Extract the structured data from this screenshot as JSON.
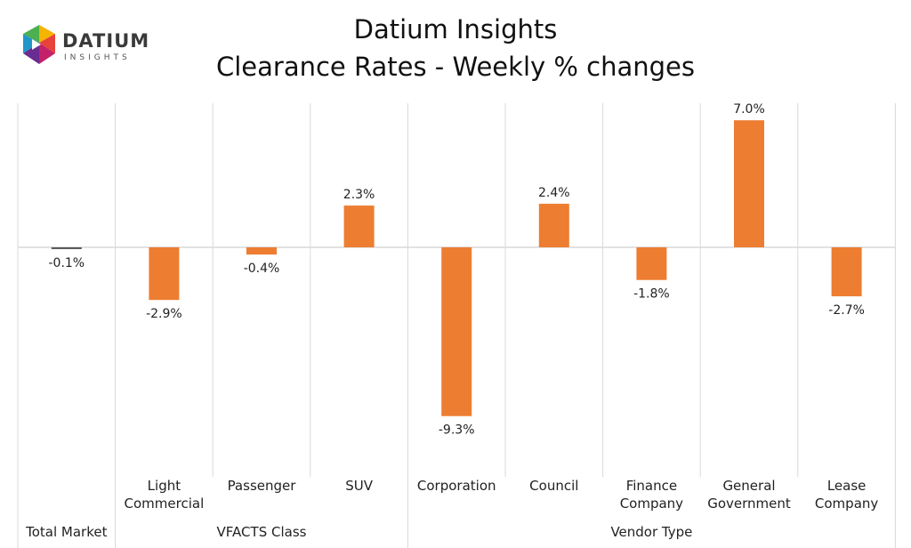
{
  "logo": {
    "word": "DATIUM",
    "sub": "INSIGHTS"
  },
  "title": "Datium Insights",
  "subtitle": "Clearance Rates - Weekly % changes",
  "colors": {
    "bar": "#ed7d31",
    "bar_total": "#5a5a5a",
    "axis": "#d9d9d9"
  },
  "chart_data": {
    "type": "bar",
    "title": "Datium Insights",
    "subtitle": "Clearance Rates - Weekly % changes",
    "categories": [
      [
        "Total Market"
      ],
      [
        "Light",
        "Commercial"
      ],
      [
        "Passenger"
      ],
      [
        "SUV"
      ],
      [
        "Corporation"
      ],
      [
        "Council"
      ],
      [
        "Finance",
        "Company"
      ],
      [
        "General",
        "Government"
      ],
      [
        "Lease",
        "Company"
      ]
    ],
    "groups": [
      {
        "name": "Total Market",
        "start": 0,
        "end": 0
      },
      {
        "name": "VFACTS Class",
        "start": 1,
        "end": 3
      },
      {
        "name": "Vendor Type",
        "start": 4,
        "end": 8
      }
    ],
    "values": [
      -0.1,
      -2.9,
      -0.4,
      2.3,
      -9.3,
      2.4,
      -1.8,
      7.0,
      -2.7
    ],
    "labels": [
      "-0.1%",
      "-2.9%",
      "-0.4%",
      "2.3%",
      "-9.3%",
      "2.4%",
      "-1.8%",
      "7.0%",
      "-2.7%"
    ],
    "ylim": [
      -12,
      8
    ],
    "grid": false,
    "legend": "none"
  }
}
